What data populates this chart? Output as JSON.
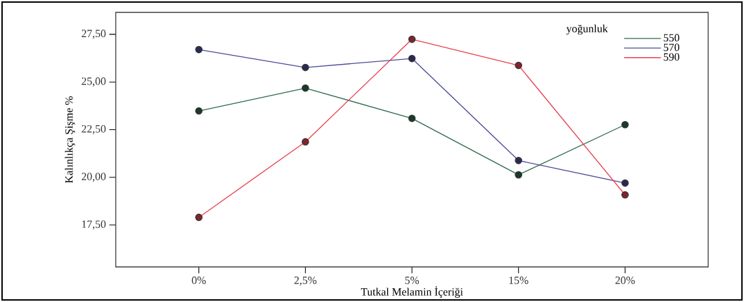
{
  "chart_data": {
    "type": "line",
    "xlabel": "Tutkal Melamin İçeriği",
    "ylabel": "Kalınlıkça Şişme %",
    "legend_title": "yoğunluk",
    "categories": [
      "0%",
      "2,5%",
      "5%",
      "15%",
      "20%"
    ],
    "series": [
      {
        "name": "550",
        "color": "#2e6b4a",
        "values": [
          23.48,
          24.68,
          23.09,
          20.13,
          22.76
        ]
      },
      {
        "name": "570",
        "color": "#4a4a9a",
        "values": [
          26.7,
          25.76,
          26.23,
          20.88,
          19.7
        ]
      },
      {
        "name": "590",
        "color": "#e8414f",
        "values": [
          17.9,
          21.86,
          27.24,
          25.87,
          19.08
        ]
      }
    ],
    "ylim": [
      15.3,
      28.65
    ],
    "yticks": [
      {
        "value": 17.5,
        "label": "17,50"
      },
      {
        "value": 20,
        "label": "20,00"
      },
      {
        "value": 22.5,
        "label": "22,50"
      },
      {
        "value": 25,
        "label": "25,00"
      },
      {
        "value": 27.5,
        "label": "27,50"
      }
    ],
    "grid": false,
    "legend": "top right",
    "marker": "circle",
    "line_style": "solid"
  }
}
